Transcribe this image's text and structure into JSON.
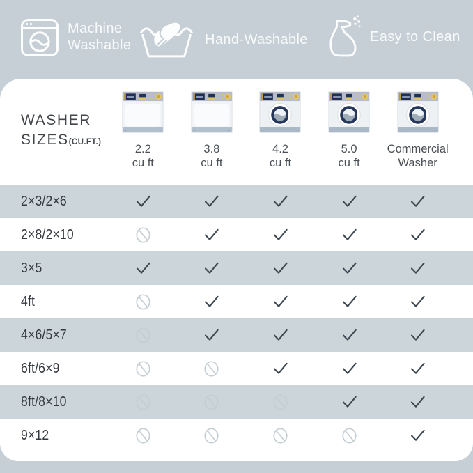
{
  "banner": {
    "features": [
      {
        "label": "Machine Washable",
        "icon": "washing-machine-icon"
      },
      {
        "label": "Hand-Washable",
        "icon": "hand-wash-icon"
      },
      {
        "label": "Easy to Clean",
        "icon": "spray-bottle-icon"
      }
    ]
  },
  "table": {
    "corner_title": {
      "line1": "WASHER",
      "line2": "SIZES",
      "suffix": "(CU.FT.)"
    },
    "columns": [
      {
        "label_line1": "2.2",
        "label_line2": "cu ft",
        "washer_type": "top-load"
      },
      {
        "label_line1": "3.8",
        "label_line2": "cu ft",
        "washer_type": "top-load"
      },
      {
        "label_line1": "4.2",
        "label_line2": "cu ft",
        "washer_type": "front-load"
      },
      {
        "label_line1": "5.0",
        "label_line2": "cu ft",
        "washer_type": "front-load"
      },
      {
        "label_line1": "Commercial",
        "label_line2": "Washer",
        "washer_type": "front-load"
      }
    ],
    "rows": [
      {
        "size": "2×3/2×6",
        "fits": [
          true,
          true,
          true,
          true,
          true
        ]
      },
      {
        "size": "2×8/2×10",
        "fits": [
          false,
          true,
          true,
          true,
          true
        ]
      },
      {
        "size": "3×5",
        "fits": [
          true,
          true,
          true,
          true,
          true
        ]
      },
      {
        "size": "4ft",
        "fits": [
          false,
          true,
          true,
          true,
          true
        ]
      },
      {
        "size": "4×6/5×7",
        "fits": [
          false,
          true,
          true,
          true,
          true
        ]
      },
      {
        "size": "6ft/6×9",
        "fits": [
          false,
          false,
          true,
          true,
          true
        ]
      },
      {
        "size": "8ft/8×10",
        "fits": [
          false,
          false,
          false,
          true,
          true
        ]
      },
      {
        "size": "9×12",
        "fits": [
          false,
          false,
          false,
          false,
          true
        ]
      }
    ]
  },
  "colors": {
    "page_background": "#c6cfd5",
    "stripe_row": "#ccd5da",
    "card_background": "#ffffff",
    "check": "#3d4750",
    "not_allowed": "#c4cdd2",
    "washer_navy": "#27385b",
    "washer_gold": "#e2c35e"
  }
}
